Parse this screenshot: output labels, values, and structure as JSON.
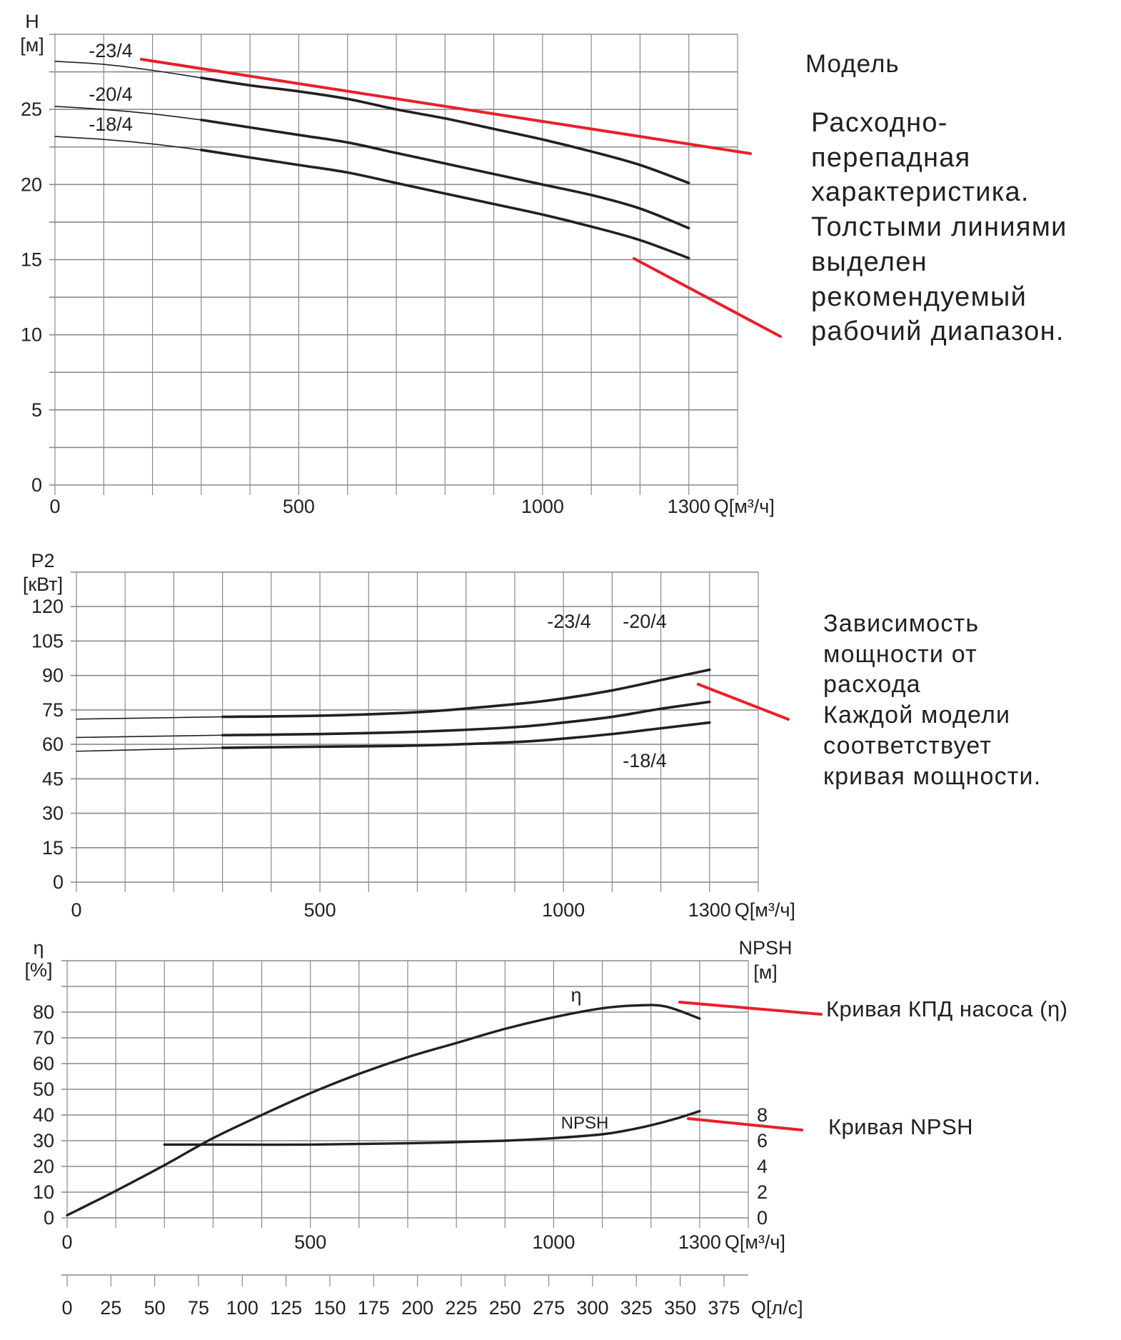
{
  "annotations": {
    "model_label": "Модель",
    "head_text": [
      "Расходно-",
      "перепадная",
      "характеристика.",
      "Толстыми линиями",
      "выделен",
      "рекомендуемый",
      "рабочий диапазон."
    ],
    "power_text": [
      "Зависимость",
      "мощности от",
      "расхода",
      "Каждой модели",
      "соответствует",
      "кривая мощности."
    ],
    "eta_text": "Кривая КПД насоса (η)",
    "npsh_text": "Кривая NPSH",
    "annotation_color": "#e8202a"
  },
  "chart_data": [
    {
      "type": "line",
      "ylabel_line1": "H",
      "ylabel_line2": "[м]",
      "xlabel": "Q[м³/ч]",
      "xlim": [
        0,
        1400
      ],
      "ylim": [
        0,
        30
      ],
      "x_ticks": [
        0,
        500,
        1000,
        1300
      ],
      "y_ticks": [
        0,
        5,
        10,
        15,
        20,
        25
      ],
      "grid": true,
      "recommended_range": [
        300,
        1300
      ],
      "series": [
        {
          "name": "-23/4",
          "x": [
            0,
            100,
            200,
            300,
            400,
            500,
            600,
            700,
            800,
            900,
            1000,
            1100,
            1200,
            1300
          ],
          "y": [
            28.2,
            28.0,
            27.6,
            27.1,
            26.6,
            26.2,
            25.7,
            25.0,
            24.4,
            23.7,
            23.0,
            22.2,
            21.3,
            20.1
          ]
        },
        {
          "name": "-20/4",
          "x": [
            0,
            100,
            200,
            300,
            400,
            500,
            600,
            700,
            800,
            900,
            1000,
            1100,
            1200,
            1300
          ],
          "y": [
            25.2,
            25.0,
            24.7,
            24.3,
            23.8,
            23.3,
            22.8,
            22.1,
            21.4,
            20.7,
            20.0,
            19.3,
            18.4,
            17.1
          ]
        },
        {
          "name": "-18/4",
          "x": [
            0,
            100,
            200,
            300,
            400,
            500,
            600,
            700,
            800,
            900,
            1000,
            1100,
            1200,
            1300
          ],
          "y": [
            23.2,
            23.0,
            22.7,
            22.3,
            21.8,
            21.3,
            20.8,
            20.1,
            19.4,
            18.7,
            18.0,
            17.2,
            16.3,
            15.1
          ]
        }
      ]
    },
    {
      "type": "line",
      "ylabel_line1": "P2",
      "ylabel_line2": "[кВт]",
      "xlabel": "Q[м³/ч]",
      "xlim": [
        0,
        1400
      ],
      "ylim": [
        0,
        135
      ],
      "x_ticks": [
        0,
        500,
        1000,
        1300
      ],
      "y_ticks": [
        0,
        15,
        30,
        45,
        60,
        75,
        90,
        105,
        120
      ],
      "grid": true,
      "recommended_range": [
        300,
        1300
      ],
      "series": [
        {
          "name": "-23/4",
          "x": [
            0,
            300,
            500,
            700,
            900,
            1000,
            1100,
            1200,
            1300
          ],
          "y": [
            71,
            72,
            72.5,
            74,
            77.5,
            80,
            83.5,
            88,
            92.5
          ]
        },
        {
          "name": "-20/4",
          "x": [
            0,
            300,
            500,
            700,
            900,
            1000,
            1100,
            1200,
            1300
          ],
          "y": [
            63,
            64,
            64.5,
            65.5,
            67.5,
            69.5,
            72,
            75.5,
            78.5
          ]
        },
        {
          "name": "-18/4",
          "x": [
            0,
            300,
            500,
            700,
            900,
            1000,
            1100,
            1200,
            1300
          ],
          "y": [
            57,
            58.5,
            59,
            59.5,
            61,
            62.5,
            64.5,
            67,
            69.5
          ]
        }
      ]
    },
    {
      "type": "line",
      "ylabel_line1": "η",
      "ylabel_line2": "[%]",
      "y2label_line1": "NPSH",
      "y2label_line2": "[м]",
      "xlabel": "Q[м³/ч]",
      "xlim": [
        0,
        1400
      ],
      "ylim": [
        0,
        100
      ],
      "y2lim": [
        0,
        20
      ],
      "x_ticks": [
        0,
        500,
        1000,
        1300
      ],
      "y_ticks": [
        0,
        10,
        20,
        30,
        40,
        50,
        60,
        70,
        80
      ],
      "y2_ticks": [
        0,
        2,
        4,
        6,
        8
      ],
      "secondary_x_axis": {
        "label": "Q[л/с]",
        "ticks": [
          0,
          25,
          50,
          75,
          100,
          125,
          150,
          175,
          200,
          225,
          250,
          275,
          300,
          325,
          350,
          375
        ]
      },
      "grid": true,
      "series": [
        {
          "name": "η",
          "axis": "left",
          "x": [
            0,
            100,
            200,
            300,
            400,
            500,
            600,
            700,
            800,
            900,
            1000,
            1100,
            1170,
            1230,
            1300
          ],
          "y": [
            1,
            10.5,
            20.5,
            31,
            40,
            48.5,
            56,
            62.5,
            68,
            73.5,
            78,
            81.5,
            82.6,
            82.2,
            77.5
          ]
        },
        {
          "name": "NPSH",
          "axis": "right",
          "x": [
            200,
            300,
            500,
            700,
            900,
            1000,
            1100,
            1150,
            1200,
            1250,
            1300
          ],
          "y": [
            5.7,
            5.7,
            5.7,
            5.8,
            6.0,
            6.2,
            6.5,
            6.8,
            7.2,
            7.7,
            8.3
          ]
        }
      ]
    }
  ]
}
